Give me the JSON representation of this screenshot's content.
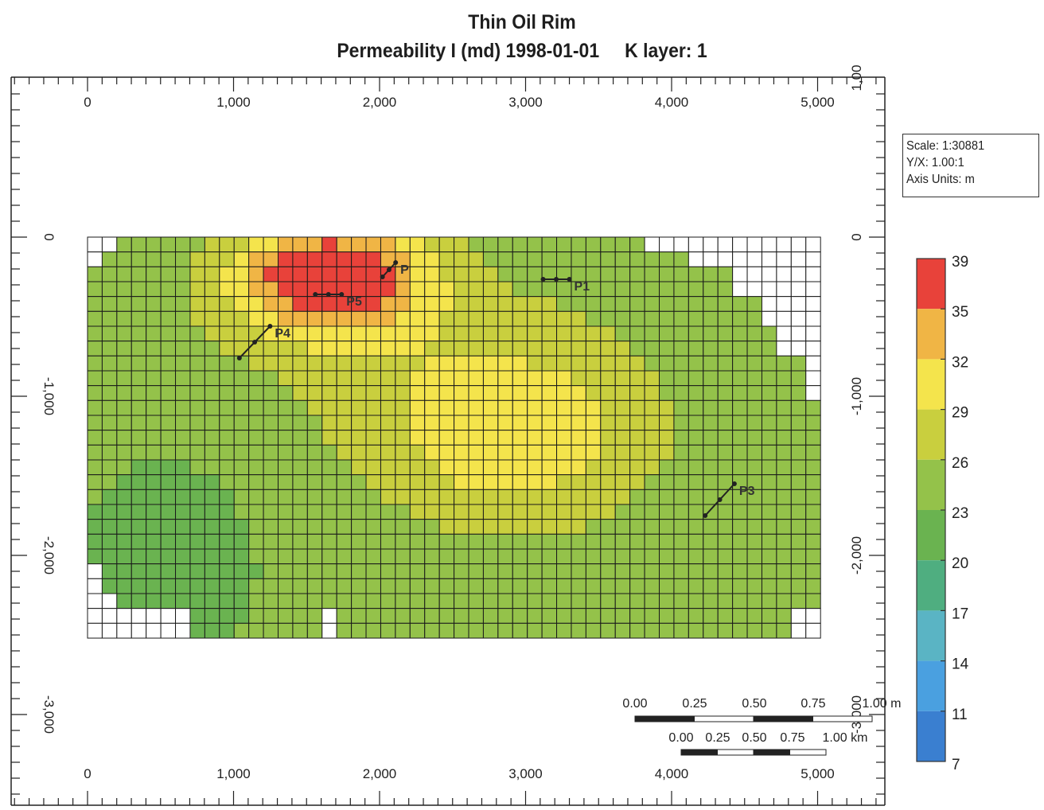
{
  "chart_data": {
    "type": "heatmap",
    "title": "Thin Oil Rim",
    "subtitle": "Permeability I (md) 1998-01-01     K layer: 1",
    "property": "Permeability I (md)",
    "date": "1998-01-01",
    "layer": "K layer: 1",
    "x_axis": {
      "unit": "m",
      "range": [
        -400,
        5600
      ],
      "ticks": [
        0,
        1000,
        2000,
        3000,
        4000,
        5000
      ],
      "tick_labels": [
        "0",
        "1,000",
        "2,000",
        "3,000",
        "4,000",
        "5,000"
      ]
    },
    "y_axis": {
      "unit": "m",
      "range": [
        -3300,
        1100
      ],
      "ticks": [
        0,
        -1000,
        -2000,
        -3000
      ],
      "tick_labels": [
        "0",
        "-1,000",
        "-2,000",
        "-3,000"
      ],
      "right_top_label": "1,00"
    },
    "grid": {
      "cols": 50,
      "rows": 27,
      "x_extent": [
        0,
        5020
      ],
      "y_extent": [
        -2520,
        0
      ]
    },
    "colorbar": {
      "ticks": [
        39,
        35,
        32,
        29,
        26,
        23,
        20,
        17,
        14,
        11,
        7
      ],
      "colors": [
        "#e8423a",
        "#f0b545",
        "#f4e44c",
        "#c9cf3e",
        "#94c24a",
        "#6ab350",
        "#4fae80",
        "#5ab4c4",
        "#4aa0e0",
        "#3a7fd0",
        "#2a5fc0"
      ]
    },
    "info": {
      "scale": "Scale: 1:30881",
      "yx": "Y/X: 1.00:1",
      "axis_units": "Axis Units: m"
    },
    "scalebars": [
      {
        "labels": [
          "0.00",
          "0.25",
          "0.50",
          "0.75",
          "1.00 m"
        ]
      },
      {
        "labels": [
          "0.00",
          "0.25",
          "0.50",
          "0.75",
          "1.00 km"
        ]
      }
    ],
    "wells": [
      {
        "name": "P",
        "pts": [
          [
            2020,
            -250
          ],
          [
            2110,
            -160
          ]
        ]
      },
      {
        "name": "P1",
        "pts": [
          [
            3120,
            -265
          ],
          [
            3300,
            -265
          ]
        ]
      },
      {
        "name": "P5",
        "pts": [
          [
            1560,
            -360
          ],
          [
            1740,
            -360
          ]
        ]
      },
      {
        "name": "P4",
        "pts": [
          [
            1040,
            -760
          ],
          [
            1250,
            -560
          ]
        ]
      },
      {
        "name": "P3",
        "pts": [
          [
            4230,
            -1750
          ],
          [
            4430,
            -1550
          ]
        ]
      }
    ]
  },
  "info_box": {
    "scale": "Scale: 1:30881",
    "yx": "Y/X: 1.00:1",
    "axis_units": "Axis Units: m"
  }
}
